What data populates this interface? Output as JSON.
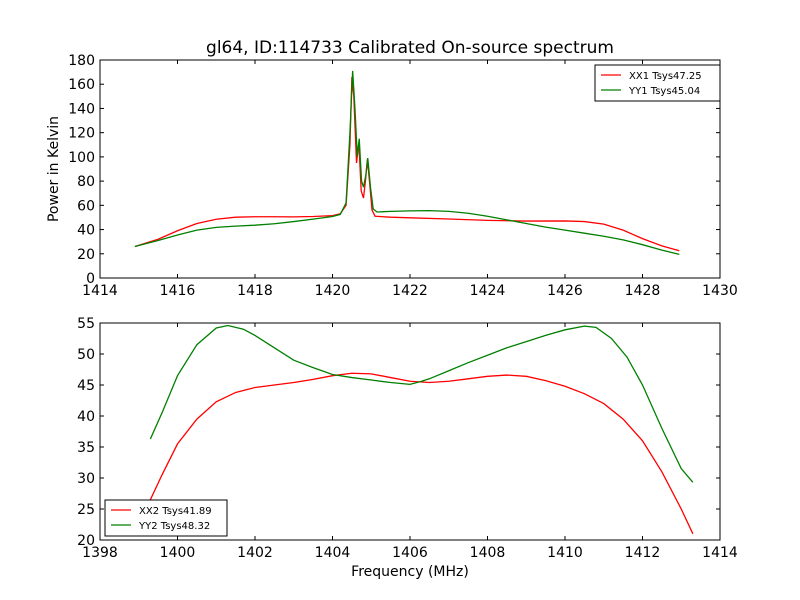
{
  "chart_data": [
    {
      "type": "line",
      "title": "gl64, ID:114733 Calibrated On-source spectrum",
      "xlabel": "",
      "ylabel": "Power in Kelvin",
      "xlim": [
        1414,
        1430
      ],
      "ylim": [
        0,
        180
      ],
      "xticks": [
        "1414",
        "1416",
        "1418",
        "1420",
        "1422",
        "1424",
        "1426",
        "1428",
        "1430"
      ],
      "yticks": [
        "0",
        "20",
        "40",
        "60",
        "80",
        "100",
        "120",
        "140",
        "160",
        "180"
      ],
      "legend_position": "top-right",
      "grid": false,
      "series": [
        {
          "name": "XX1 Tsys47.25",
          "color": "#ff0000",
          "points": [
            [
              1414.9,
              26
            ],
            [
              1415.5,
              32
            ],
            [
              1416.0,
              39
            ],
            [
              1416.5,
              45
            ],
            [
              1417.0,
              48.5
            ],
            [
              1417.5,
              50.2
            ],
            [
              1418.0,
              50.6
            ],
            [
              1418.5,
              50.6
            ],
            [
              1419.0,
              50.5
            ],
            [
              1419.5,
              50.8
            ],
            [
              1420.0,
              51.5
            ],
            [
              1420.2,
              53
            ],
            [
              1420.35,
              60
            ],
            [
              1420.45,
              110
            ],
            [
              1420.5,
              166
            ],
            [
              1420.55,
              150
            ],
            [
              1420.62,
              95
            ],
            [
              1420.68,
              112
            ],
            [
              1420.74,
              72
            ],
            [
              1420.8,
              66
            ],
            [
              1420.85,
              80
            ],
            [
              1420.9,
              98
            ],
            [
              1420.96,
              78
            ],
            [
              1421.02,
              56
            ],
            [
              1421.1,
              51
            ],
            [
              1421.5,
              50.2
            ],
            [
              1422.0,
              49.7
            ],
            [
              1423.0,
              48.7
            ],
            [
              1424.0,
              47.6
            ],
            [
              1425.0,
              47.0
            ],
            [
              1426.0,
              47.1
            ],
            [
              1426.5,
              46.6
            ],
            [
              1427.0,
              44.5
            ],
            [
              1427.5,
              39.5
            ],
            [
              1428.0,
              32.5
            ],
            [
              1428.5,
              26.5
            ],
            [
              1428.95,
              22.5
            ]
          ]
        },
        {
          "name": "YY1 Tsys45.04",
          "color": "#008000",
          "points": [
            [
              1414.9,
              26
            ],
            [
              1415.5,
              31
            ],
            [
              1416.0,
              35.5
            ],
            [
              1416.5,
              39.5
            ],
            [
              1417.0,
              41.8
            ],
            [
              1417.5,
              42.8
            ],
            [
              1418.0,
              43.6
            ],
            [
              1418.5,
              44.8
            ],
            [
              1419.0,
              46.6
            ],
            [
              1419.5,
              48.6
            ],
            [
              1420.0,
              50.8
            ],
            [
              1420.2,
              52.5
            ],
            [
              1420.35,
              62
            ],
            [
              1420.45,
              120
            ],
            [
              1420.52,
              171
            ],
            [
              1420.58,
              140
            ],
            [
              1420.64,
              100
            ],
            [
              1420.69,
              115
            ],
            [
              1420.75,
              80
            ],
            [
              1420.8,
              75
            ],
            [
              1420.86,
              85
            ],
            [
              1420.91,
              99
            ],
            [
              1420.98,
              75
            ],
            [
              1421.05,
              57
            ],
            [
              1421.15,
              54.5
            ],
            [
              1421.5,
              55.0
            ],
            [
              1422.0,
              55.4
            ],
            [
              1422.5,
              55.6
            ],
            [
              1423.0,
              55.0
            ],
            [
              1423.5,
              53.5
            ],
            [
              1424.0,
              51.0
            ],
            [
              1424.5,
              48.0
            ],
            [
              1425.0,
              45.0
            ],
            [
              1425.5,
              42.0
            ],
            [
              1426.0,
              39.5
            ],
            [
              1426.5,
              37.0
            ],
            [
              1427.0,
              34.5
            ],
            [
              1427.5,
              31.5
            ],
            [
              1428.0,
              27.5
            ],
            [
              1428.5,
              23.0
            ],
            [
              1428.95,
              19.5
            ]
          ]
        }
      ]
    },
    {
      "type": "line",
      "title": "",
      "xlabel": "Frequency (MHz)",
      "ylabel": "",
      "xlim": [
        1398,
        1414
      ],
      "ylim": [
        20,
        55
      ],
      "xticks": [
        "1398",
        "1400",
        "1402",
        "1404",
        "1406",
        "1408",
        "1410",
        "1412",
        "1414"
      ],
      "yticks": [
        "20",
        "25",
        "30",
        "35",
        "40",
        "45",
        "50",
        "55"
      ],
      "legend_position": "bottom-left",
      "grid": false,
      "series": [
        {
          "name": "XX2 Tsys41.89",
          "color": "#ff0000",
          "points": [
            [
              1399.3,
              26.5
            ],
            [
              1399.6,
              30.5
            ],
            [
              1400.0,
              35.5
            ],
            [
              1400.5,
              39.5
            ],
            [
              1401.0,
              42.3
            ],
            [
              1401.5,
              43.8
            ],
            [
              1402.0,
              44.6
            ],
            [
              1402.5,
              45.0
            ],
            [
              1403.0,
              45.4
            ],
            [
              1403.5,
              45.9
            ],
            [
              1404.0,
              46.5
            ],
            [
              1404.5,
              46.9
            ],
            [
              1405.0,
              46.8
            ],
            [
              1405.5,
              46.2
            ],
            [
              1406.0,
              45.6
            ],
            [
              1406.5,
              45.4
            ],
            [
              1407.0,
              45.6
            ],
            [
              1407.5,
              46.0
            ],
            [
              1408.0,
              46.4
            ],
            [
              1408.5,
              46.6
            ],
            [
              1409.0,
              46.4
            ],
            [
              1409.5,
              45.7
            ],
            [
              1410.0,
              44.8
            ],
            [
              1410.5,
              43.6
            ],
            [
              1411.0,
              42.0
            ],
            [
              1411.5,
              39.5
            ],
            [
              1412.0,
              36.0
            ],
            [
              1412.5,
              31.0
            ],
            [
              1413.0,
              25.0
            ],
            [
              1413.3,
              21.0
            ]
          ]
        },
        {
          "name": "YY2 Tsys48.32",
          "color": "#008000",
          "points": [
            [
              1399.3,
              36.3
            ],
            [
              1399.6,
              40.5
            ],
            [
              1400.0,
              46.5
            ],
            [
              1400.5,
              51.5
            ],
            [
              1401.0,
              54.2
            ],
            [
              1401.3,
              54.6
            ],
            [
              1401.7,
              54.0
            ],
            [
              1402.0,
              53.0
            ],
            [
              1402.5,
              51.0
            ],
            [
              1403.0,
              49.0
            ],
            [
              1403.5,
              47.8
            ],
            [
              1404.0,
              46.7
            ],
            [
              1404.5,
              46.2
            ],
            [
              1405.0,
              45.8
            ],
            [
              1405.5,
              45.4
            ],
            [
              1406.0,
              45.1
            ],
            [
              1406.3,
              45.6
            ],
            [
              1406.5,
              46.0
            ],
            [
              1407.0,
              47.3
            ],
            [
              1407.5,
              48.6
            ],
            [
              1408.0,
              49.8
            ],
            [
              1408.5,
              51.0
            ],
            [
              1409.0,
              52.0
            ],
            [
              1409.5,
              53.0
            ],
            [
              1410.0,
              53.9
            ],
            [
              1410.5,
              54.5
            ],
            [
              1410.8,
              54.3
            ],
            [
              1411.2,
              52.5
            ],
            [
              1411.6,
              49.5
            ],
            [
              1412.0,
              45.0
            ],
            [
              1412.5,
              38.0
            ],
            [
              1413.0,
              31.5
            ],
            [
              1413.3,
              29.3
            ]
          ]
        }
      ]
    }
  ]
}
